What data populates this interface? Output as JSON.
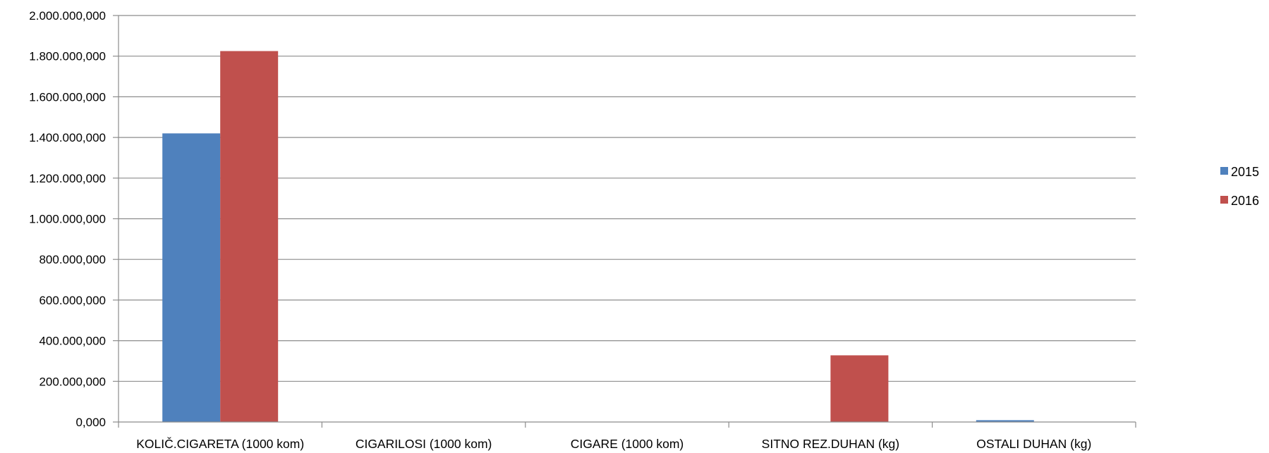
{
  "chart_data": {
    "type": "bar",
    "title": "",
    "xlabel": "",
    "ylabel": "",
    "categories": [
      "KOLIČ.CIGARETA (1000 kom)",
      "CIGARILOSI (1000 kom)",
      "CIGARE (1000 kom)",
      "SITNO REZ.DUHAN (kg)",
      "OSTALI DUHAN (kg)"
    ],
    "series": [
      {
        "name": "2015",
        "color": "#4F81BD",
        "values": [
          1420000000,
          0,
          0,
          0,
          9000000
        ]
      },
      {
        "name": "2016",
        "color": "#C0504D",
        "values": [
          1825000000,
          0,
          0,
          328000000,
          1500000
        ]
      }
    ],
    "ylim": [
      0,
      2000000000
    ],
    "yticks": [
      0,
      200000000,
      400000000,
      600000000,
      800000000,
      1000000000,
      1200000000,
      1400000000,
      1600000000,
      1800000000,
      2000000000
    ],
    "ytick_labels": [
      "0,000",
      "200.000,000",
      "400.000,000",
      "600.000,000",
      "800.000,000",
      "1.000.000,000",
      "1.200.000,000",
      "1.400.000,000",
      "1.600.000,000",
      "1.800.000,000",
      "2.000.000,000"
    ],
    "grid": true,
    "legend_position": "right"
  }
}
